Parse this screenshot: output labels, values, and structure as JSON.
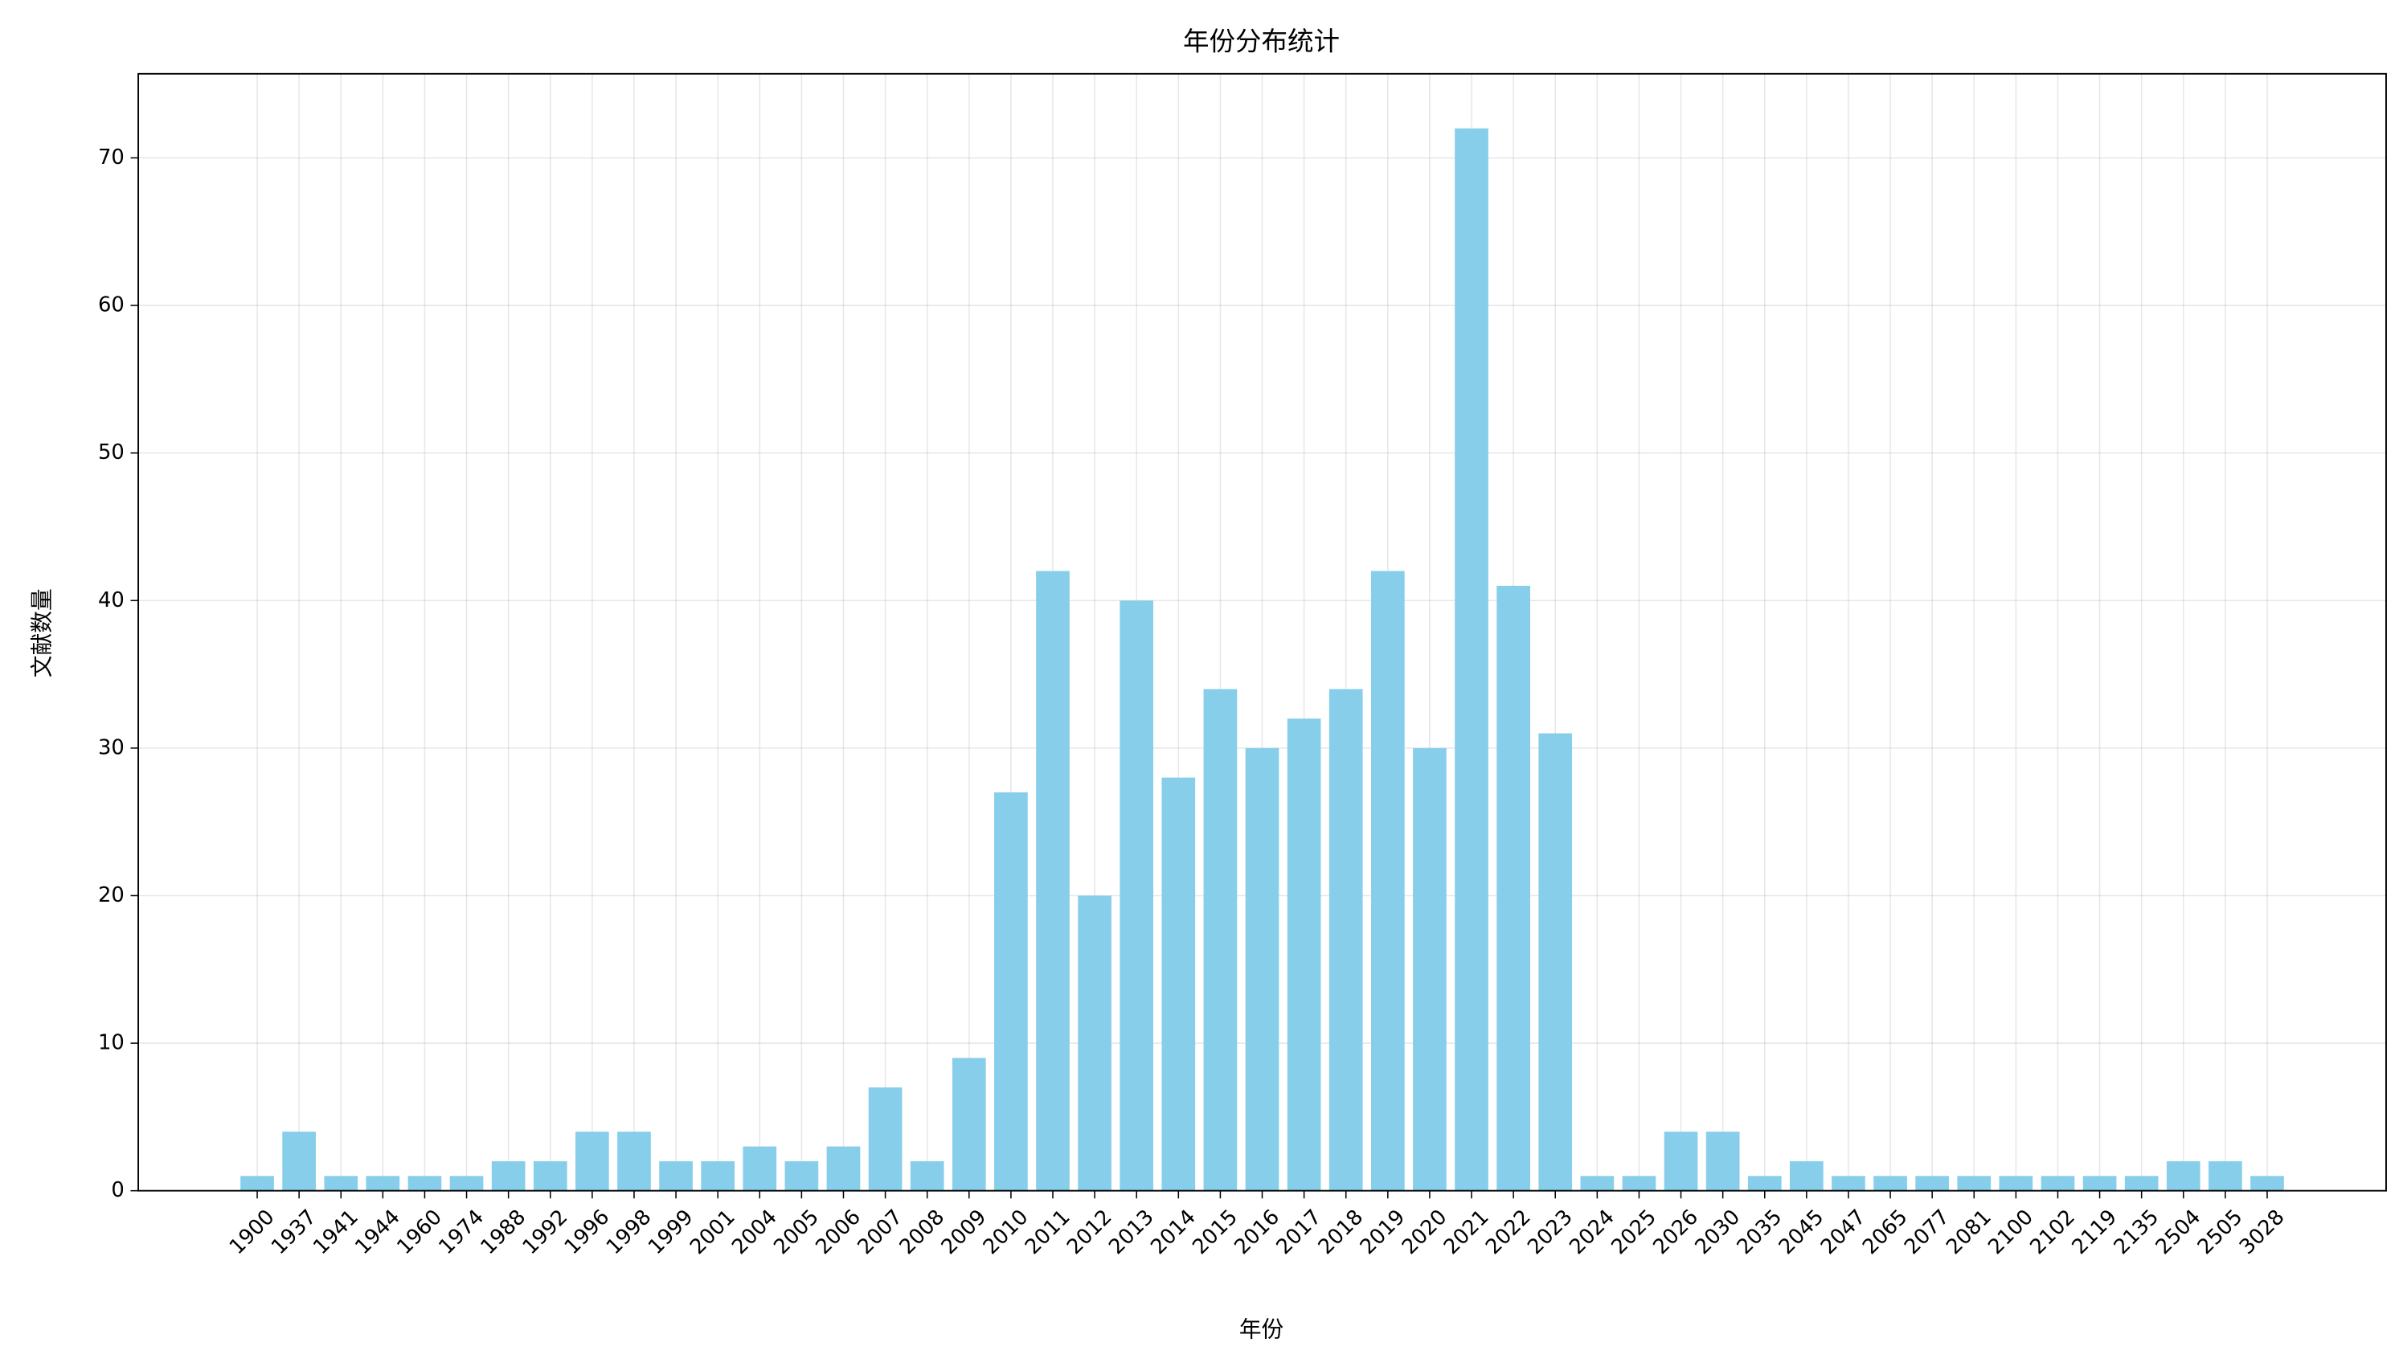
{
  "chart_data": {
    "type": "bar",
    "title": "年份分布统计",
    "x_label": "年份",
    "y_label": "文献数量",
    "categories": [
      "1900",
      "1937",
      "1941",
      "1944",
      "1960",
      "1974",
      "1988",
      "1992",
      "1996",
      "1998",
      "1999",
      "2001",
      "2004",
      "2005",
      "2006",
      "2007",
      "2008",
      "2009",
      "2010",
      "2011",
      "2012",
      "2013",
      "2014",
      "2015",
      "2016",
      "2017",
      "2018",
      "2019",
      "2020",
      "2021",
      "2022",
      "2023",
      "2024",
      "2025",
      "2026",
      "2030",
      "2035",
      "2045",
      "2047",
      "2065",
      "2077",
      "2081",
      "2100",
      "2102",
      "2119",
      "2135",
      "2504",
      "2505",
      "3028"
    ],
    "values": [
      1,
      4,
      1,
      1,
      1,
      1,
      2,
      2,
      4,
      4,
      2,
      2,
      3,
      2,
      3,
      7,
      2,
      9,
      27,
      42,
      20,
      40,
      28,
      34,
      30,
      32,
      34,
      42,
      30,
      72,
      41,
      31,
      1,
      1,
      4,
      4,
      1,
      2,
      1,
      1,
      1,
      1,
      1,
      1,
      1,
      1,
      2,
      2,
      1
    ],
    "color": "#87ceeb",
    "ylim": [
      0,
      75.7
    ],
    "yticks": [
      0,
      10,
      20,
      30,
      40,
      50,
      60,
      70
    ],
    "grid": true
  }
}
